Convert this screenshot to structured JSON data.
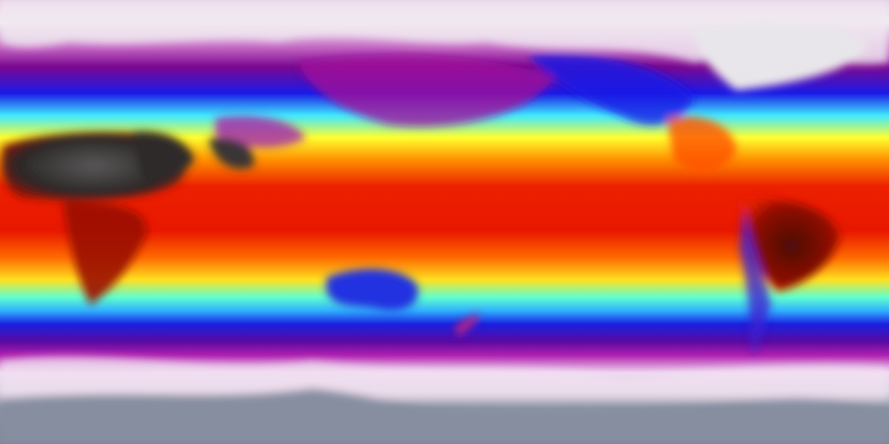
{
  "map": {
    "projection": "equirectangular",
    "variable": "temperature",
    "colormap": {
      "cold_extreme": "#8a93a4",
      "cold": "#f0e4f0",
      "cool": "#8c10a0",
      "mild_cool": "#1a1ae6",
      "mild": "#40f0ff",
      "warm": "#ffff20",
      "hot": "#ff8000",
      "very_hot": "#e81800",
      "extreme": "#2e2a2a"
    }
  }
}
